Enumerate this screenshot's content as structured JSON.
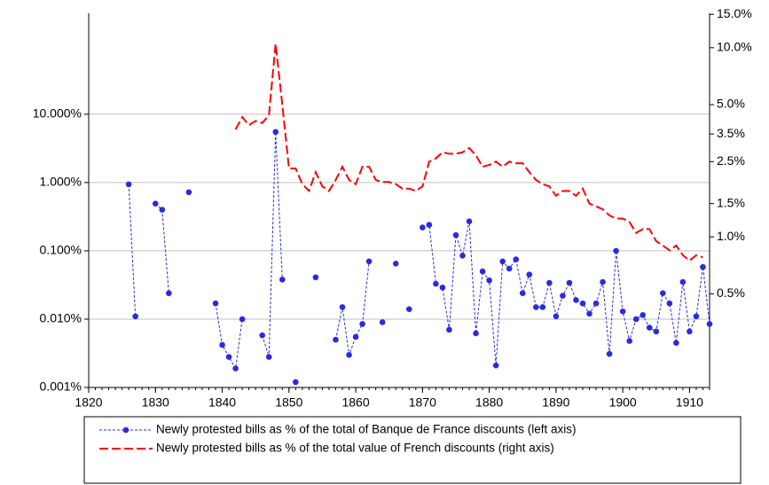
{
  "chart_data": {
    "type": "line",
    "x": [
      1826,
      1827,
      1828,
      1829,
      1830,
      1831,
      1832,
      1833,
      1834,
      1835,
      1836,
      1837,
      1838,
      1839,
      1840,
      1841,
      1842,
      1843,
      1844,
      1845,
      1846,
      1847,
      1848,
      1849,
      1850,
      1851,
      1852,
      1853,
      1854,
      1855,
      1856,
      1857,
      1858,
      1859,
      1860,
      1861,
      1862,
      1863,
      1864,
      1865,
      1866,
      1867,
      1868,
      1869,
      1870,
      1871,
      1872,
      1873,
      1874,
      1875,
      1876,
      1877,
      1878,
      1879,
      1880,
      1881,
      1882,
      1883,
      1884,
      1885,
      1886,
      1887,
      1888,
      1889,
      1890,
      1891,
      1892,
      1893,
      1894,
      1895,
      1896,
      1897,
      1898,
      1899,
      1900,
      1901,
      1902,
      1903,
      1904,
      1905,
      1906,
      1907,
      1908,
      1909,
      1910,
      1911,
      1912,
      1913
    ],
    "xlim": [
      1820,
      1913
    ],
    "xticks": [
      1820,
      1830,
      1840,
      1850,
      1860,
      1870,
      1880,
      1890,
      1900,
      1910
    ],
    "yscale": "log",
    "ylim": [
      0.001,
      300
    ],
    "yticks": [
      {
        "value": 0.001,
        "label": "0.001%"
      },
      {
        "value": 0.01,
        "label": "0.010%"
      },
      {
        "value": 0.1,
        "label": "0.100%"
      },
      {
        "value": 1,
        "label": "1.000%"
      },
      {
        "value": 10,
        "label": "10.000%"
      }
    ],
    "y2scale": "log",
    "y2lim": [
      0.16,
      15.2
    ],
    "y2ticks": [
      {
        "value": 0.5,
        "label": "0.5%"
      },
      {
        "value": 1,
        "label": "1.0%"
      },
      {
        "value": 1.5,
        "label": "1.5%"
      },
      {
        "value": 2.5,
        "label": "2.5%"
      },
      {
        "value": 3.5,
        "label": "3.5%"
      },
      {
        "value": 5,
        "label": "5.0%"
      },
      {
        "value": 10,
        "label": "10.0%"
      },
      {
        "value": 15,
        "label": "15.0%"
      }
    ],
    "grid": true,
    "legend": "bottom",
    "series": [
      {
        "name": "Newly protested bills as % of the total of Banque de France discounts (left axis)",
        "color": "#2a2ae0",
        "markers": true,
        "dash": false,
        "axis": "y",
        "values": [
          0.94,
          0.011,
          null,
          null,
          0.49,
          0.4,
          0.024,
          null,
          null,
          0.72,
          null,
          null,
          null,
          0.017,
          0.0042,
          0.0028,
          0.0019,
          0.01,
          null,
          null,
          0.0058,
          0.0028,
          5.5,
          0.038,
          null,
          0.0012,
          null,
          null,
          0.041,
          null,
          null,
          0.005,
          0.015,
          0.003,
          0.0055,
          0.0085,
          0.07,
          null,
          0.009,
          null,
          0.065,
          null,
          0.014,
          null,
          0.22,
          0.24,
          0.033,
          0.029,
          0.007,
          0.17,
          0.085,
          0.27,
          0.0062,
          0.05,
          0.037,
          0.0021,
          0.07,
          0.055,
          0.075,
          0.024,
          0.045,
          0.015,
          0.015,
          0.034,
          0.011,
          0.022,
          0.034,
          0.019,
          0.017,
          0.012,
          0.017,
          0.035,
          0.0031,
          0.1,
          0.013,
          0.0048,
          0.01,
          0.0115,
          0.0075,
          0.0066,
          0.024,
          0.017,
          0.0045,
          0.035,
          0.0066,
          0.011,
          0.058,
          0.0085
        ]
      },
      {
        "name": "Newly protested bills as % of the total value of French discounts (right axis)",
        "color": "#ff0000",
        "markers": false,
        "dash": true,
        "axis": "y2",
        "values": [
          null,
          null,
          null,
          null,
          null,
          null,
          null,
          null,
          null,
          null,
          null,
          null,
          null,
          null,
          null,
          null,
          3.7,
          4.3,
          3.9,
          4.1,
          4.0,
          4.4,
          10.5,
          5.0,
          2.3,
          2.3,
          1.9,
          1.75,
          2.2,
          1.85,
          1.75,
          2.0,
          2.35,
          2.0,
          1.9,
          2.35,
          2.35,
          2.0,
          1.95,
          1.95,
          1.9,
          1.8,
          1.8,
          1.75,
          1.85,
          2.5,
          2.6,
          2.8,
          2.75,
          2.75,
          2.8,
          2.95,
          2.7,
          2.35,
          2.4,
          2.5,
          2.35,
          2.5,
          2.45,
          2.45,
          2.2,
          2.0,
          1.9,
          1.85,
          1.65,
          1.75,
          1.75,
          1.65,
          1.8,
          1.5,
          1.45,
          1.4,
          1.3,
          1.25,
          1.25,
          1.2,
          1.05,
          1.1,
          1.1,
          0.95,
          0.9,
          0.85,
          0.9,
          0.8,
          0.75,
          0.8,
          0.78,
          null
        ]
      }
    ]
  }
}
